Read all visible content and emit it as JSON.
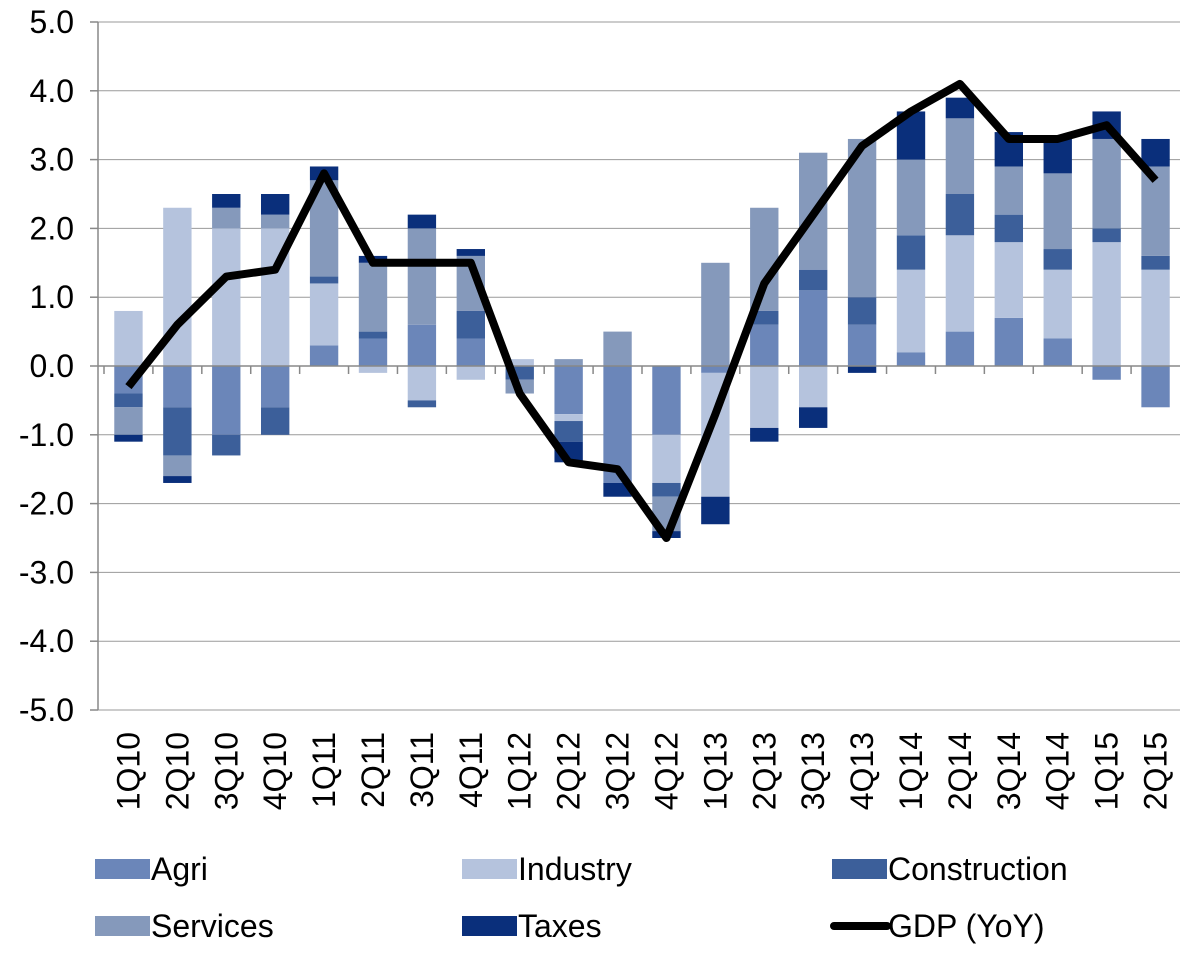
{
  "chart_data": {
    "type": "bar",
    "stacked": true,
    "categories": [
      "1Q10",
      "2Q10",
      "3Q10",
      "4Q10",
      "1Q11",
      "2Q11",
      "3Q11",
      "4Q11",
      "1Q12",
      "2Q12",
      "3Q12",
      "4Q12",
      "1Q13",
      "2Q13",
      "3Q13",
      "4Q13",
      "1Q14",
      "2Q14",
      "3Q14",
      "4Q14",
      "1Q15",
      "2Q15"
    ],
    "series": [
      {
        "name": "Agri",
        "color": "#6b86b9",
        "values": [
          -0.4,
          -0.6,
          -1.0,
          -0.6,
          0.3,
          0.4,
          0.6,
          0.4,
          0,
          -0.7,
          -1.7,
          -1.0,
          -0.1,
          0.6,
          1.1,
          0.6,
          0.2,
          0.5,
          0.7,
          0.4,
          -0.2,
          -0.6
        ]
      },
      {
        "name": "Industry",
        "color": "#b5c3dd",
        "values": [
          0.8,
          2.3,
          2.0,
          2.0,
          0.9,
          -0.1,
          -0.5,
          -0.2,
          0.1,
          -0.1,
          0,
          -0.7,
          -1.8,
          -0.9,
          -0.6,
          0,
          1.2,
          1.4,
          1.1,
          1.0,
          1.8,
          1.4
        ]
      },
      {
        "name": "Construction",
        "color": "#3c5f9a",
        "values": [
          -0.2,
          -0.7,
          -0.3,
          -0.4,
          0.1,
          0.1,
          -0.1,
          0.4,
          -0.2,
          -0.3,
          0,
          -0.2,
          0,
          0.2,
          0.3,
          0.4,
          0.5,
          0.6,
          0.4,
          0.3,
          0.2,
          0.2
        ]
      },
      {
        "name": "Services",
        "color": "#8599bb",
        "values": [
          -0.4,
          -0.3,
          0.3,
          0.2,
          1.4,
          1.0,
          1.4,
          0.8,
          -0.2,
          0.1,
          0.5,
          -0.5,
          1.5,
          1.5,
          1.7,
          2.3,
          1.1,
          1.1,
          0.7,
          1.1,
          1.3,
          1.3
        ]
      },
      {
        "name": "Taxes",
        "color": "#0a2f7b",
        "values": [
          -0.1,
          -0.1,
          0.2,
          0.3,
          0.2,
          0.1,
          0.2,
          0.1,
          0,
          -0.3,
          -0.2,
          -0.1,
          -0.4,
          -0.2,
          -0.3,
          -0.1,
          0.7,
          0.3,
          0.5,
          0.5,
          0.4,
          0.4
        ]
      },
      {
        "name": "GDP (YoY)",
        "type": "line",
        "color": "#000000",
        "values": [
          -0.3,
          0.6,
          1.3,
          1.4,
          2.8,
          1.5,
          1.5,
          1.5,
          -0.4,
          -1.4,
          -1.5,
          -2.5,
          -0.7,
          1.2,
          2.2,
          3.2,
          3.7,
          4.1,
          3.3,
          3.3,
          3.5,
          2.7
        ]
      }
    ],
    "ylim": [
      -5,
      5
    ],
    "yticks": [
      {
        "value": -5,
        "label": "-5.0"
      },
      {
        "value": -4,
        "label": "-4.0"
      },
      {
        "value": -3,
        "label": "-3.0"
      },
      {
        "value": -2,
        "label": "-2.0"
      },
      {
        "value": -1,
        "label": "-1.0"
      },
      {
        "value": 0,
        "label": "0.0"
      },
      {
        "value": 1,
        "label": "1.0"
      },
      {
        "value": 2,
        "label": "2.0"
      },
      {
        "value": 3,
        "label": "3.0"
      },
      {
        "value": 4,
        "label": "4.0"
      },
      {
        "value": 5,
        "label": "5.0"
      }
    ],
    "grid": true
  }
}
